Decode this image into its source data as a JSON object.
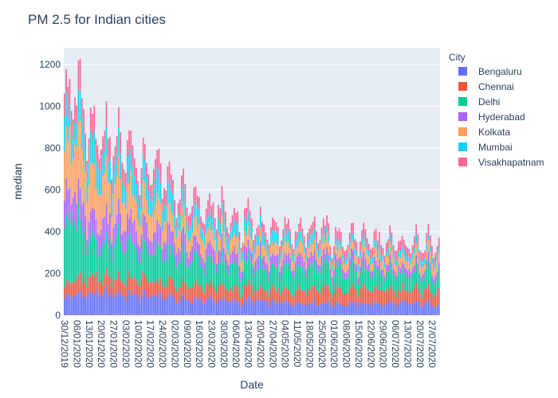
{
  "chart_data": {
    "type": "bar",
    "stacked": true,
    "title": "PM 2.5 for Indian cities",
    "xlabel": "Date",
    "ylabel": "median",
    "ylim": [
      0,
      1280
    ],
    "y_ticks": [
      0,
      200,
      400,
      600,
      800,
      1000,
      1200
    ],
    "legend_title": "City",
    "legend_position": "right",
    "date_range": [
      "30/12/2019",
      "31/07/2020"
    ],
    "x_tick_labels": [
      "30/12/2019",
      "06/01/2020",
      "13/01/2020",
      "20/01/2020",
      "27/01/2020",
      "03/02/2020",
      "10/02/2020",
      "17/02/2020",
      "24/02/2020",
      "02/03/2020",
      "09/03/2020",
      "16/03/2020",
      "23/03/2020",
      "30/03/2020",
      "06/04/2020",
      "13/04/2020",
      "20/04/2020",
      "27/04/2020",
      "04/05/2020",
      "11/05/2020",
      "18/05/2020",
      "25/05/2020",
      "01/06/2020",
      "08/06/2020",
      "15/06/2020",
      "22/06/2020",
      "29/06/2020",
      "06/07/2020",
      "13/07/2020",
      "20/07/2020",
      "27/07/2020"
    ],
    "series": [
      {
        "name": "Bengaluru",
        "color": "#636efa",
        "weekly": [
          85,
          95,
          100,
          100,
          105,
          100,
          95,
          95,
          90,
          80,
          75,
          75,
          75,
          70,
          65,
          70,
          65,
          60,
          60,
          60,
          60,
          60,
          55,
          55,
          55,
          55,
          55,
          55,
          55,
          55,
          55
        ]
      },
      {
        "name": "Chennai",
        "color": "#EF553B",
        "weekly": [
          65,
          70,
          70,
          75,
          75,
          70,
          75,
          70,
          65,
          65,
          65,
          65,
          65,
          60,
          55,
          55,
          55,
          55,
          60,
          65,
          70,
          75,
          65,
          65,
          70,
          70,
          65,
          65,
          60,
          60,
          60
        ]
      },
      {
        "name": "Delhi",
        "color": "#00cc96",
        "weekly": [
          290,
          280,
          200,
          160,
          170,
          180,
          150,
          150,
          140,
          130,
          120,
          120,
          115,
          110,
          105,
          110,
          105,
          100,
          100,
          95,
          100,
          100,
          95,
          95,
          90,
          85,
          85,
          80,
          75,
          80,
          80
        ]
      },
      {
        "name": "Hyderabad",
        "color": "#ab63fa",
        "weekly": [
          140,
          130,
          115,
          105,
          105,
          110,
          95,
          95,
          90,
          75,
          65,
          65,
          60,
          55,
          55,
          55,
          50,
          50,
          45,
          45,
          45,
          40,
          35,
          35,
          35,
          35,
          30,
          30,
          30,
          30,
          30
        ]
      },
      {
        "name": "Kolkata",
        "color": "#FFA15A",
        "weekly": [
          270,
          230,
          200,
          180,
          160,
          140,
          130,
          125,
          110,
          90,
          80,
          80,
          75,
          70,
          65,
          60,
          55,
          55,
          55,
          55,
          50,
          50,
          45,
          45,
          45,
          45,
          45,
          45,
          45,
          45,
          45
        ]
      },
      {
        "name": "Mumbai",
        "color": "#19d3f3",
        "weekly": [
          130,
          125,
          115,
          115,
          110,
          110,
          105,
          100,
          100,
          80,
          70,
          65,
          65,
          60,
          55,
          55,
          50,
          50,
          45,
          40,
          40,
          35,
          30,
          30,
          30,
          30,
          30,
          30,
          30,
          30,
          30
        ]
      },
      {
        "name": "Visakhapatnam",
        "color": "#FF6692",
        "weekly": [
          120,
          110,
          100,
          100,
          95,
          95,
          85,
          80,
          80,
          70,
          65,
          65,
          60,
          55,
          50,
          50,
          45,
          45,
          45,
          45,
          45,
          45,
          45,
          45,
          45,
          45,
          45,
          45,
          45,
          45,
          45
        ]
      }
    ]
  }
}
